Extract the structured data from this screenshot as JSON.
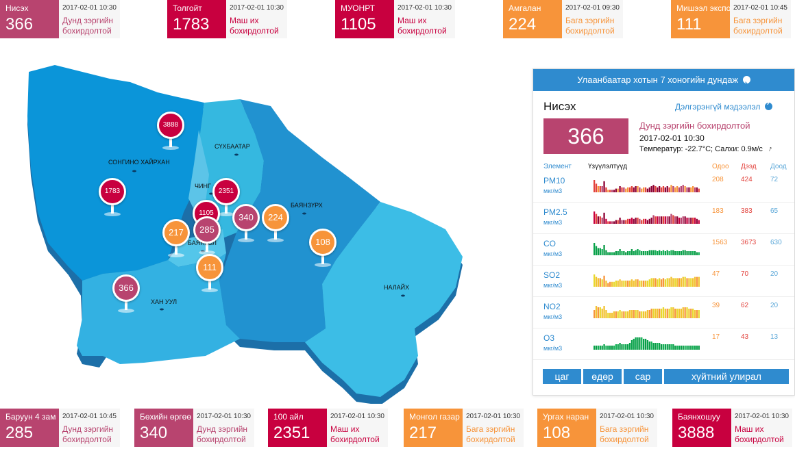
{
  "top_cards": [
    {
      "name": "Нисэх",
      "value": "366",
      "time": "2017-02-01 10:30",
      "status": "Дунд зэргийн бохирдолтой",
      "color": "#b8446f"
    },
    {
      "name": "Толгойт",
      "value": "1783",
      "time": "2017-02-01 10:30",
      "status": "Маш их бохирдолтой",
      "color": "#c8003f"
    },
    {
      "name": "МУОНРТ",
      "value": "1105",
      "time": "2017-02-01 10:30",
      "status": "Маш их бохирдолтой",
      "color": "#c8003f"
    },
    {
      "name": "Амгалан",
      "value": "224",
      "time": "2017-02-01 09:30",
      "status": "Бага зэргийн бохирдолтой",
      "color": "#f7943a"
    },
    {
      "name": "Мишээл экспо",
      "value": "111",
      "time": "2017-02-01 10:45",
      "status": "Бага зэргийн бохирдолтой",
      "color": "#f7943a"
    }
  ],
  "bottom_cards": [
    {
      "name": "Баруун 4 зам",
      "value": "285",
      "time": "2017-02-01 10:45",
      "status": "Дунд зэргийн бохирдолтой",
      "color": "#b8446f"
    },
    {
      "name": "Бөхийн өргөө",
      "value": "340",
      "time": "2017-02-01 10:30",
      "status": "Дунд зэргийн бохирдолтой",
      "color": "#b8446f"
    },
    {
      "name": "100 айл",
      "value": "2351",
      "time": "2017-02-01 10:30",
      "status": "Маш их бохирдолтой",
      "color": "#c8003f"
    },
    {
      "name": "Монгол газар",
      "value": "217",
      "time": "2017-02-01 10:30",
      "status": "Бага зэргийн бохирдолтой",
      "color": "#f7943a"
    },
    {
      "name": "Ургах наран",
      "value": "108",
      "time": "2017-02-01 10:30",
      "status": "Бага зэргийн бохирдолтой",
      "color": "#f7943a"
    },
    {
      "name": "Баянхошуу",
      "value": "3888",
      "time": "2017-02-01 10:30",
      "status": "Маш их бохирдолтой",
      "color": "#c8003f"
    }
  ],
  "map": {
    "districts": [
      "СОНГИНО ХАЙРХАН",
      "СҮХБААТАР",
      "ЧИНГ",
      "БАЯНЗҮРХ",
      "БАЯНГОЛ",
      "ХАН УУЛ",
      "НАЛАЙХ"
    ],
    "pins": [
      {
        "value": "3888",
        "color": "#c8003f"
      },
      {
        "value": "1783",
        "color": "#c8003f"
      },
      {
        "value": "2351",
        "color": "#c8003f"
      },
      {
        "value": "1105",
        "color": "#c8003f"
      },
      {
        "value": "285",
        "color": "#b8446f"
      },
      {
        "value": "340",
        "color": "#b8446f"
      },
      {
        "value": "224",
        "color": "#f7943a"
      },
      {
        "value": "217",
        "color": "#f7943a"
      },
      {
        "value": "108",
        "color": "#f7943a"
      },
      {
        "value": "111",
        "color": "#f7943a"
      },
      {
        "value": "366",
        "color": "#b8446f"
      }
    ]
  },
  "panel": {
    "header": "Улаанбаатар хотын 7 хоногийн дундаж",
    "station": "Нисэх",
    "more_link": "Дэлгэрэнгүй мэдээлэл",
    "aqi": "366",
    "status": "Дунд зэргийн бохирдолтой",
    "time": "2017-02-01 10:30",
    "weather": "Температур: -22.7°C; Салхи: 0.9м/с",
    "weather_icon": "wind-arrow-icon",
    "columns": {
      "element": "Элемент",
      "trend": "Үзүүлэлтүүд",
      "now": "Одоо",
      "high": "Дээд",
      "low": "Доод"
    },
    "elements": [
      {
        "name": "PM10",
        "unit": "мкг/м3",
        "now": "208",
        "high": "424",
        "low": "72",
        "bars": [
          10,
          7,
          5,
          5,
          5,
          9,
          4,
          2,
          2,
          2,
          2,
          3,
          3,
          5,
          4,
          4,
          3,
          4,
          4,
          5,
          4,
          5,
          5,
          4,
          3,
          4,
          4,
          3,
          4,
          5,
          6,
          5,
          4,
          5,
          4,
          5,
          4,
          5,
          4,
          6,
          5,
          4,
          5,
          4,
          5,
          6,
          5,
          4,
          4,
          4,
          5,
          4,
          4,
          3
        ]
      },
      {
        "name": "PM2.5",
        "unit": "мкг/м3",
        "now": "183",
        "high": "383",
        "low": "65",
        "bars": [
          10,
          8,
          6,
          6,
          5,
          9,
          4,
          2,
          2,
          2,
          2,
          3,
          3,
          5,
          3,
          3,
          3,
          4,
          4,
          5,
          4,
          5,
          5,
          4,
          3,
          4,
          4,
          3,
          4,
          5,
          7,
          6,
          6,
          6,
          6,
          6,
          6,
          6,
          6,
          8,
          7,
          6,
          6,
          5,
          5,
          6,
          6,
          5,
          5,
          5,
          5,
          5,
          4,
          3
        ]
      },
      {
        "name": "CO",
        "unit": "мкг/м3",
        "now": "1563",
        "high": "3673",
        "low": "630",
        "bars": [
          12,
          9,
          7,
          7,
          6,
          10,
          5,
          3,
          3,
          3,
          3,
          4,
          4,
          6,
          4,
          4,
          3,
          4,
          4,
          6,
          4,
          5,
          6,
          5,
          4,
          4,
          4,
          4,
          5,
          5,
          5,
          5,
          4,
          5,
          4,
          5,
          4,
          5,
          4,
          5,
          5,
          4,
          4,
          4,
          4,
          5,
          5,
          4,
          4,
          4,
          4,
          4,
          3,
          3
        ]
      },
      {
        "name": "SO2",
        "unit": "мкг/м3",
        "now": "47",
        "high": "70",
        "low": "20",
        "bars": [
          10,
          8,
          7,
          7,
          6,
          9,
          5,
          3,
          4,
          4,
          4,
          5,
          5,
          6,
          5,
          5,
          5,
          5,
          5,
          6,
          5,
          6,
          6,
          5,
          5,
          5,
          5,
          5,
          6,
          7,
          7,
          7,
          6,
          7,
          6,
          7,
          6,
          7,
          7,
          8,
          7,
          7,
          7,
          7,
          7,
          8,
          8,
          7,
          7,
          7,
          7,
          8,
          8,
          8
        ]
      },
      {
        "name": "NO2",
        "unit": "мкг/м3",
        "now": "39",
        "high": "62",
        "low": "20",
        "bars": [
          6,
          9,
          8,
          8,
          7,
          9,
          6,
          4,
          4,
          4,
          5,
          5,
          5,
          6,
          5,
          5,
          5,
          5,
          6,
          6,
          6,
          6,
          6,
          5,
          5,
          5,
          5,
          6,
          6,
          7,
          7,
          7,
          7,
          7,
          7,
          8,
          7,
          7,
          7,
          8,
          8,
          7,
          7,
          7,
          7,
          8,
          8,
          8,
          7,
          7,
          7,
          6,
          6,
          6
        ]
      },
      {
        "name": "O3",
        "unit": "мкг/м3",
        "now": "17",
        "high": "43",
        "low": "13",
        "bars": [
          3,
          3,
          3,
          3,
          3,
          4,
          3,
          3,
          3,
          3,
          3,
          4,
          4,
          5,
          4,
          4,
          4,
          4,
          5,
          7,
          8,
          9,
          9,
          9,
          9,
          8,
          8,
          7,
          6,
          6,
          5,
          5,
          5,
          5,
          4,
          4,
          4,
          4,
          4,
          4,
          4,
          3,
          3,
          3,
          3,
          3,
          3,
          3,
          3,
          3,
          3,
          3,
          3,
          3
        ]
      }
    ],
    "tabs": [
      "цаг",
      "өдөр",
      "сар",
      "хүйтний улирал"
    ]
  }
}
